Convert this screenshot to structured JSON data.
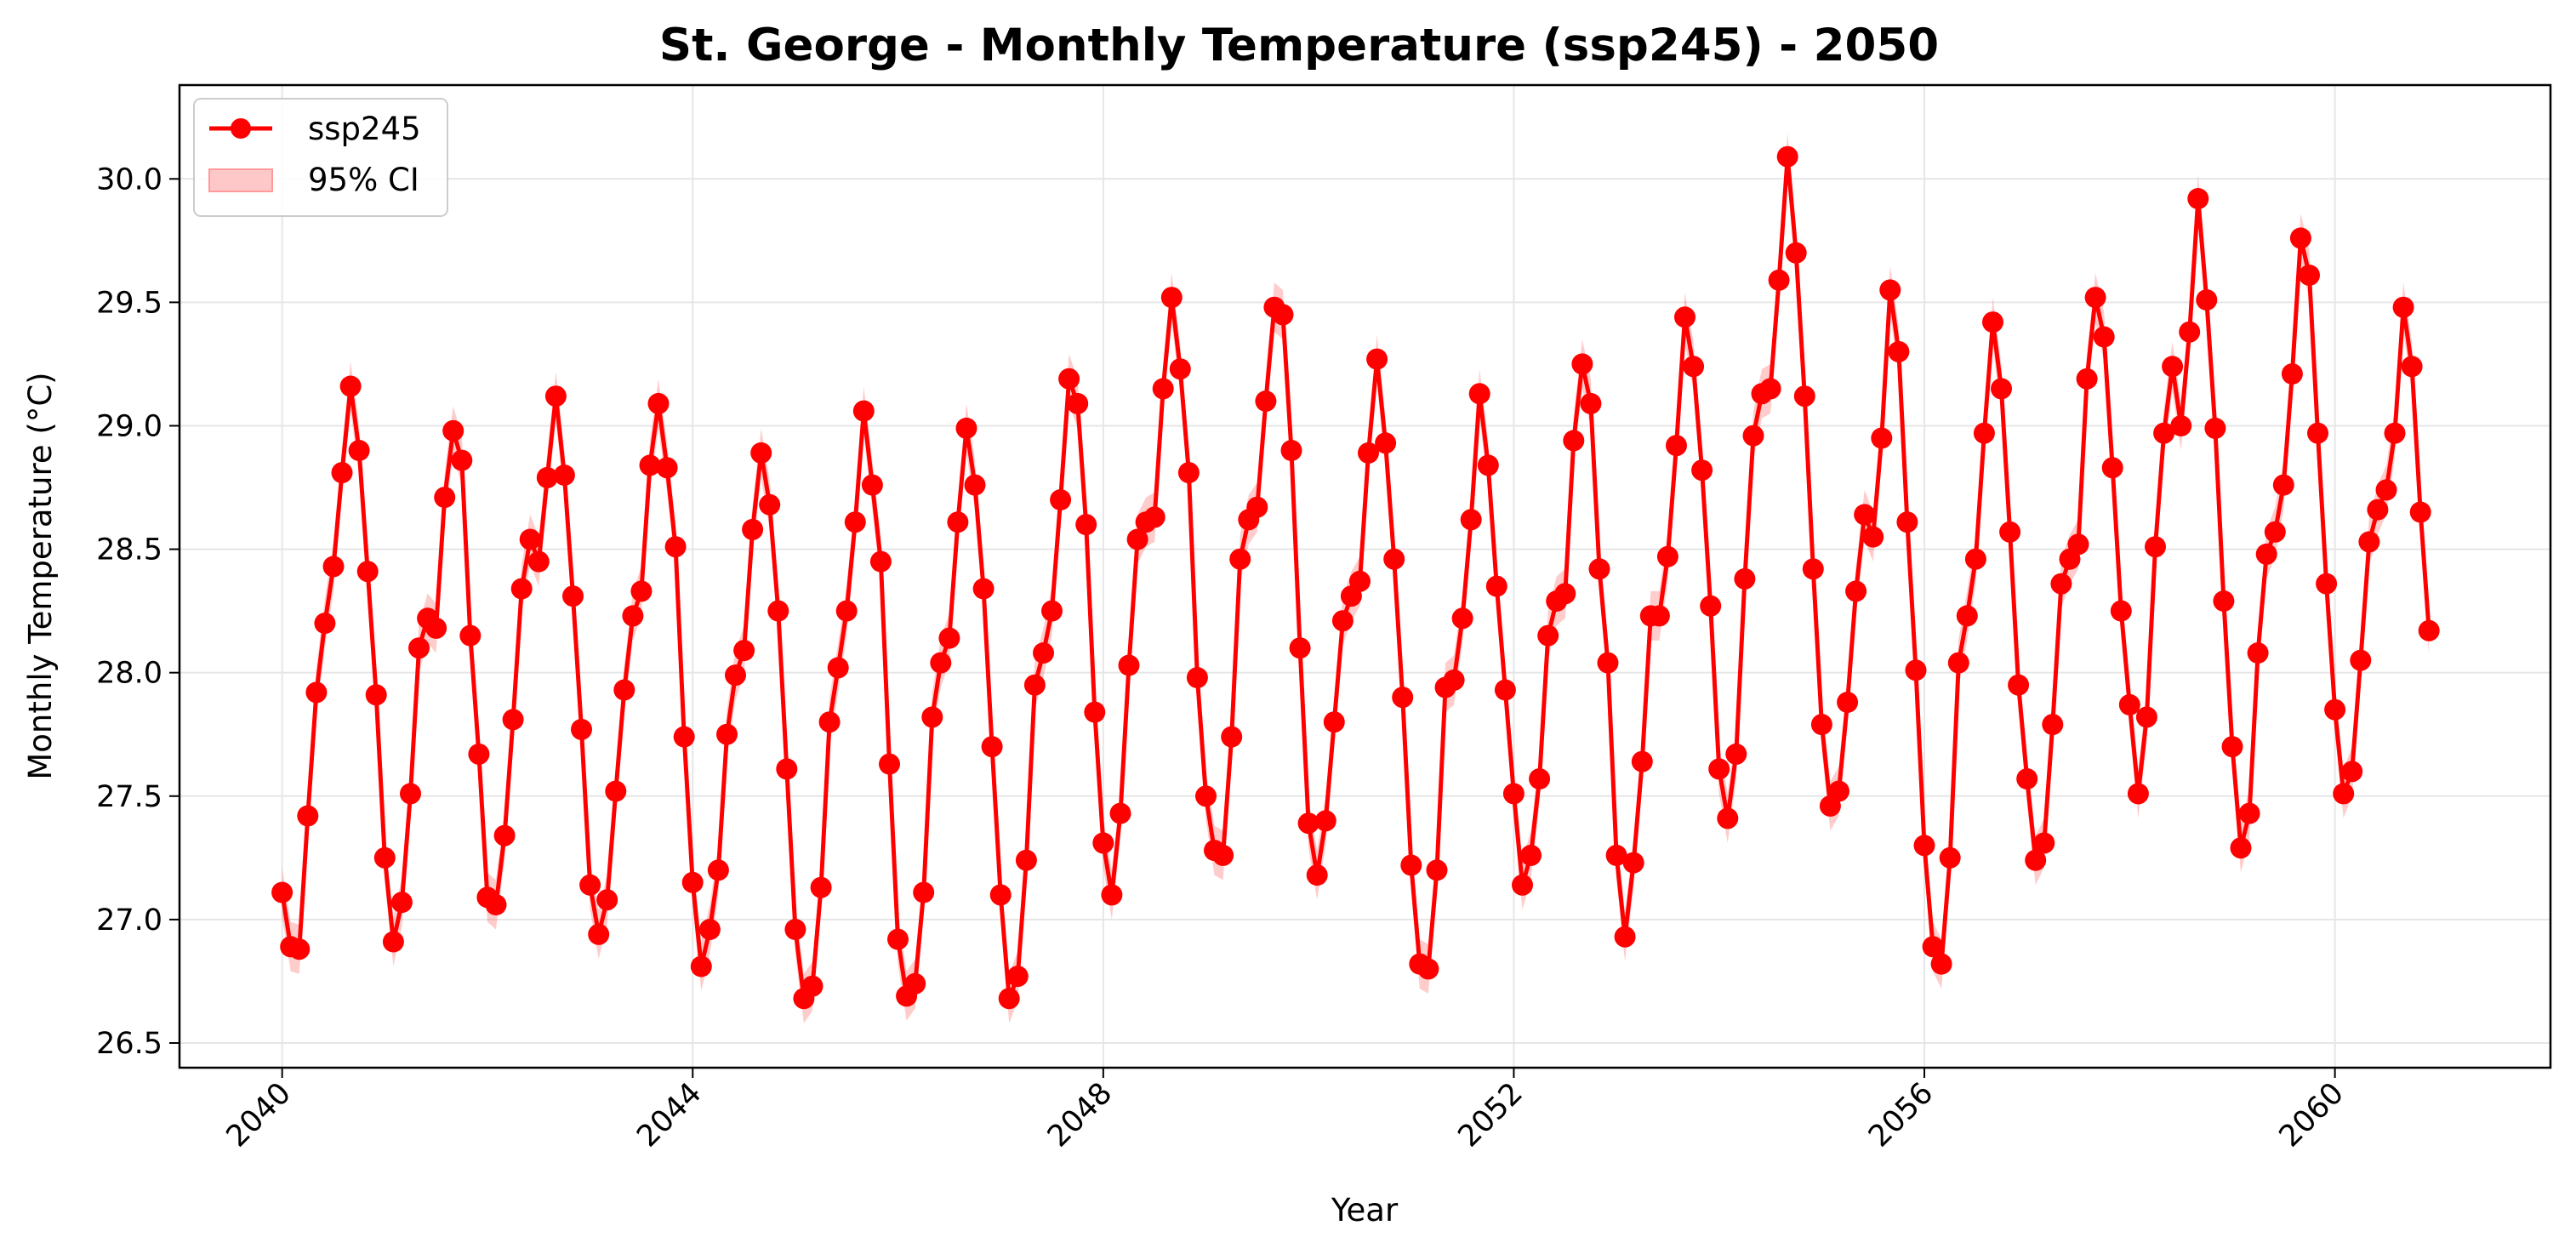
{
  "chart_data": {
    "type": "line",
    "title": "St. George - Monthly Temperature (ssp245) - 2050",
    "xlabel": "Year",
    "ylabel": "Monthly Temperature (°C)",
    "xlim": [
      2039,
      2062.1
    ],
    "ylim": [
      26.4,
      30.38
    ],
    "x_ticks": [
      2040,
      2044,
      2048,
      2052,
      2056,
      2060
    ],
    "x_tick_labels": [
      "2040",
      "2044",
      "2048",
      "2052",
      "2056",
      "2060"
    ],
    "y_ticks": [
      26.5,
      27.0,
      27.5,
      28.0,
      28.5,
      29.0,
      29.5,
      30.0
    ],
    "y_tick_labels": [
      "26.5",
      "27.0",
      "27.5",
      "28.0",
      "28.5",
      "29.0",
      "29.5",
      "30.0"
    ],
    "grid": true,
    "legend_position": "top-left",
    "x_start": 2040,
    "x_step": 0.0833333,
    "ci_half_width": 0.1,
    "series": [
      {
        "name": "ssp245",
        "color": "#ff0000",
        "marker": "circle",
        "values": [
          27.11,
          26.89,
          26.88,
          27.42,
          27.92,
          28.2,
          28.43,
          28.81,
          29.16,
          28.9,
          28.41,
          27.91,
          27.25,
          26.91,
          27.07,
          27.51,
          28.1,
          28.22,
          28.18,
          28.71,
          28.98,
          28.86,
          28.15,
          27.67,
          27.09,
          27.06,
          27.34,
          27.81,
          28.34,
          28.54,
          28.45,
          28.79,
          29.12,
          28.8,
          28.31,
          27.77,
          27.14,
          26.94,
          27.08,
          27.52,
          27.93,
          28.23,
          28.33,
          28.84,
          29.09,
          28.83,
          28.51,
          27.74,
          27.15,
          26.81,
          26.96,
          27.2,
          27.75,
          27.99,
          28.09,
          28.58,
          28.89,
          28.68,
          28.25,
          27.61,
          26.96,
          26.68,
          26.73,
          27.13,
          27.8,
          28.02,
          28.25,
          28.61,
          29.06,
          28.76,
          28.45,
          27.63,
          26.92,
          26.69,
          26.74,
          27.11,
          27.82,
          28.04,
          28.14,
          28.61,
          28.99,
          28.76,
          28.34,
          27.7,
          27.1,
          26.68,
          26.77,
          27.24,
          27.95,
          28.08,
          28.25,
          28.7,
          29.19,
          29.09,
          28.6,
          27.84,
          27.31,
          27.1,
          27.43,
          28.03,
          28.54,
          28.61,
          28.63,
          29.15,
          29.52,
          29.23,
          28.81,
          27.98,
          27.5,
          27.28,
          27.26,
          27.74,
          28.46,
          28.62,
          28.67,
          29.1,
          29.48,
          29.45,
          28.9,
          28.1,
          27.39,
          27.18,
          27.4,
          27.8,
          28.21,
          28.31,
          28.37,
          28.89,
          29.27,
          28.93,
          28.46,
          27.9,
          27.22,
          26.82,
          26.8,
          27.2,
          27.94,
          27.97,
          28.22,
          28.62,
          29.13,
          28.84,
          28.35,
          27.93,
          27.51,
          27.14,
          27.26,
          27.57,
          28.15,
          28.29,
          28.32,
          28.94,
          29.25,
          29.09,
          28.42,
          28.04,
          27.26,
          26.93,
          27.23,
          27.64,
          28.23,
          28.23,
          28.47,
          28.92,
          29.44,
          29.24,
          28.82,
          28.27,
          27.61,
          27.41,
          27.67,
          28.38,
          28.96,
          29.13,
          29.15,
          29.59,
          30.09,
          29.7,
          29.12,
          28.42,
          27.79,
          27.46,
          27.52,
          27.88,
          28.33,
          28.64,
          28.55,
          28.95,
          29.55,
          29.3,
          28.61,
          28.01,
          27.3,
          26.89,
          26.82,
          27.25,
          28.04,
          28.23,
          28.46,
          28.97,
          29.42,
          29.15,
          28.57,
          27.95,
          27.57,
          27.24,
          27.31,
          27.79,
          28.36,
          28.46,
          28.52,
          29.19,
          29.52,
          29.36,
          28.83,
          28.25,
          27.87,
          27.51,
          27.82,
          28.51,
          28.97,
          29.24,
          29.0,
          29.38,
          29.92,
          29.51,
          28.99,
          28.29,
          27.7,
          27.29,
          27.43,
          28.08,
          28.48,
          28.57,
          28.76,
          29.21,
          29.76,
          29.61,
          28.97,
          28.36,
          27.85,
          27.51,
          27.6,
          28.05,
          28.53,
          28.66,
          28.74,
          28.97,
          29.48,
          29.24,
          28.65,
          28.17
        ]
      }
    ],
    "legend": [
      {
        "label": "ssp245",
        "kind": "line-marker",
        "color": "#ff0000"
      },
      {
        "label": "95% CI",
        "kind": "patch",
        "color": "#ffc8c8"
      }
    ]
  }
}
